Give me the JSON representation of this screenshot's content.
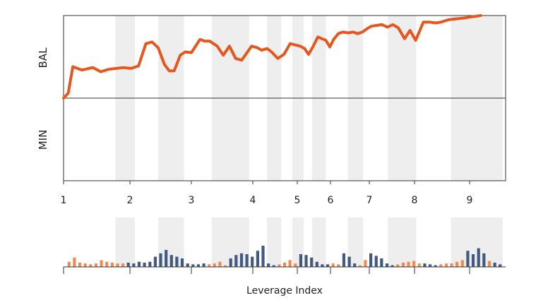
{
  "chart_data": {
    "type": "line",
    "title": "",
    "ylabel_top": "BAL",
    "ylabel_bottom": "MIN",
    "xlabel": "Leverage Index",
    "x_ticks": [
      1,
      2,
      3,
      4,
      5,
      6,
      7,
      8,
      9
    ],
    "xlim": [
      1,
      9.6
    ],
    "colors": {
      "line": "#e4571f",
      "bar_orange": "#ef8a55",
      "bar_blue": "#435a80",
      "band": "#eeeeee",
      "axis": "#333333"
    },
    "shaded_bands": [
      [
        1.78,
        2.08
      ],
      [
        2.46,
        2.88
      ],
      [
        3.33,
        3.94
      ],
      [
        4.32,
        4.64
      ],
      [
        4.89,
        5.19
      ],
      [
        5.44,
        5.86
      ],
      [
        6.45,
        6.84
      ],
      [
        7.41,
        8.03
      ],
      [
        8.66,
        9.6
      ]
    ],
    "main_line": {
      "x": [
        1.0,
        1.07,
        1.14,
        1.28,
        1.44,
        1.56,
        1.68,
        1.8,
        1.9,
        2.02,
        2.14,
        2.26,
        2.36,
        2.46,
        2.56,
        2.64,
        2.72,
        2.82,
        2.9,
        3.0,
        3.14,
        3.22,
        3.3,
        3.42,
        3.52,
        3.62,
        3.72,
        3.82,
        3.98,
        4.1,
        4.2,
        4.32,
        4.42,
        4.56,
        4.7,
        4.84,
        4.98,
        5.08,
        5.22,
        5.34,
        5.48,
        5.62,
        5.74,
        5.86,
        5.98,
        6.08,
        6.2,
        6.32,
        6.46,
        6.58,
        6.7,
        6.82,
        6.94,
        7.04,
        7.16,
        7.28,
        7.4,
        7.52,
        7.64,
        7.78,
        7.9,
        8.02,
        8.16,
        8.28,
        8.38,
        8.48,
        8.62,
        8.9,
        9.0,
        9.1,
        9.2
      ],
      "y": [
        0.0,
        0.06,
        0.38,
        0.34,
        0.37,
        0.32,
        0.35,
        0.36,
        0.37,
        0.36,
        0.39,
        0.66,
        0.68,
        0.61,
        0.41,
        0.33,
        0.33,
        0.52,
        0.56,
        0.55,
        0.71,
        0.69,
        0.69,
        0.63,
        0.52,
        0.63,
        0.48,
        0.46,
        0.63,
        0.61,
        0.58,
        0.6,
        0.56,
        0.48,
        0.53,
        0.66,
        0.64,
        0.63,
        0.6,
        0.53,
        0.63,
        0.74,
        0.72,
        0.7,
        0.62,
        0.71,
        0.78,
        0.8,
        0.79,
        0.8,
        0.78,
        0.8,
        0.84,
        0.87,
        0.88,
        0.89,
        0.86,
        0.89,
        0.85,
        0.72,
        0.82,
        0.7,
        0.92,
        0.92,
        0.91,
        0.92,
        0.95,
        0.97,
        0.98,
        0.99,
        1.0
      ]
    },
    "bar_series": [
      {
        "color": "orange",
        "values": [
          0.3,
          0.55,
          0.25,
          0.2,
          0.15,
          0.2,
          0.4,
          0.3,
          0.25,
          0.2,
          0.2
        ]
      },
      {
        "color": "blue",
        "values": [
          0.25,
          0.2,
          0.3,
          0.25,
          0.3,
          0.6,
          0.8,
          1.0,
          0.7,
          0.6,
          0.5,
          0.2,
          0.15,
          0.15,
          0.2
        ]
      },
      {
        "color": "orange",
        "values": [
          0.15,
          0.2,
          0.3,
          0.1
        ]
      },
      {
        "color": "blue",
        "values": [
          0.5,
          0.7,
          0.8,
          0.75,
          0.6,
          0.95,
          1.25,
          0.2,
          0.1
        ]
      },
      {
        "color": "orange",
        "values": [
          0.15,
          0.25,
          0.4,
          0.2
        ]
      },
      {
        "color": "blue",
        "values": [
          0.75,
          0.7,
          0.55,
          0.3,
          0.15,
          0.15
        ]
      },
      {
        "color": "orange",
        "values": [
          0.2,
          0.15
        ]
      },
      {
        "color": "blue",
        "values": [
          0.8,
          0.6,
          0.2
        ]
      },
      {
        "color": "orange",
        "values": [
          0.1,
          0.4
        ]
      },
      {
        "color": "blue",
        "values": [
          0.8,
          0.65,
          0.5,
          0.2,
          0.1
        ]
      },
      {
        "color": "orange",
        "values": [
          0.15,
          0.25,
          0.3,
          0.35,
          0.2
        ]
      },
      {
        "color": "blue",
        "values": [
          0.2,
          0.15,
          0.1
        ]
      },
      {
        "color": "orange",
        "values": [
          0.15,
          0.2,
          0.2,
          0.3,
          0.4
        ]
      },
      {
        "color": "blue",
        "values": [
          0.95,
          0.75,
          1.1,
          0.8
        ]
      },
      {
        "color": "orange",
        "values": [
          0.35
        ]
      },
      {
        "color": "blue",
        "values": [
          0.25,
          0.15
        ]
      }
    ]
  }
}
